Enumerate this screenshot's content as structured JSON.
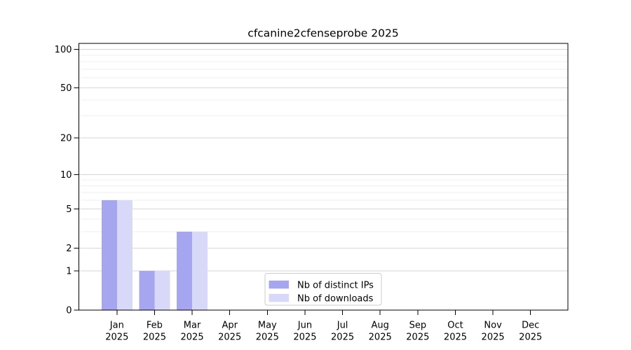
{
  "chart_data": {
    "type": "bar",
    "title": "cfcanine2cfenseprobe 2025",
    "categories": [
      "Jan 2025",
      "Feb 2025",
      "Mar 2025",
      "Apr 2025",
      "May 2025",
      "Jun 2025",
      "Jul 2025",
      "Aug 2025",
      "Sep 2025",
      "Oct 2025",
      "Nov 2025",
      "Dec 2025"
    ],
    "series": [
      {
        "name": "Nb of distinct IPs",
        "color": "#a5a5f0",
        "values": [
          6,
          1,
          3,
          0,
          0,
          0,
          0,
          0,
          0,
          0,
          0,
          0
        ]
      },
      {
        "name": "Nb of downloads",
        "color": "#d8d8f8",
        "values": [
          6,
          1,
          3,
          0,
          0,
          0,
          0,
          0,
          0,
          0,
          0,
          0
        ]
      }
    ],
    "xlabel": "",
    "ylabel": "",
    "yscale": "log1p",
    "ylim": [
      0,
      110
    ],
    "yticks": [
      0,
      1,
      2,
      5,
      10,
      20,
      50,
      100
    ],
    "minor_yticks": [
      3,
      4,
      6,
      7,
      8,
      9,
      30,
      40,
      60,
      70,
      80,
      90
    ],
    "grid": true,
    "legend_position": "lower center (inside plot)"
  },
  "colors": {
    "background": "#ffffff",
    "axis": "#000000",
    "text": "#000000",
    "major_grid": "#d6d6d6",
    "minor_grid": "#efefef",
    "legend_border": "#cccccc",
    "legend_background": "#ffffff"
  }
}
